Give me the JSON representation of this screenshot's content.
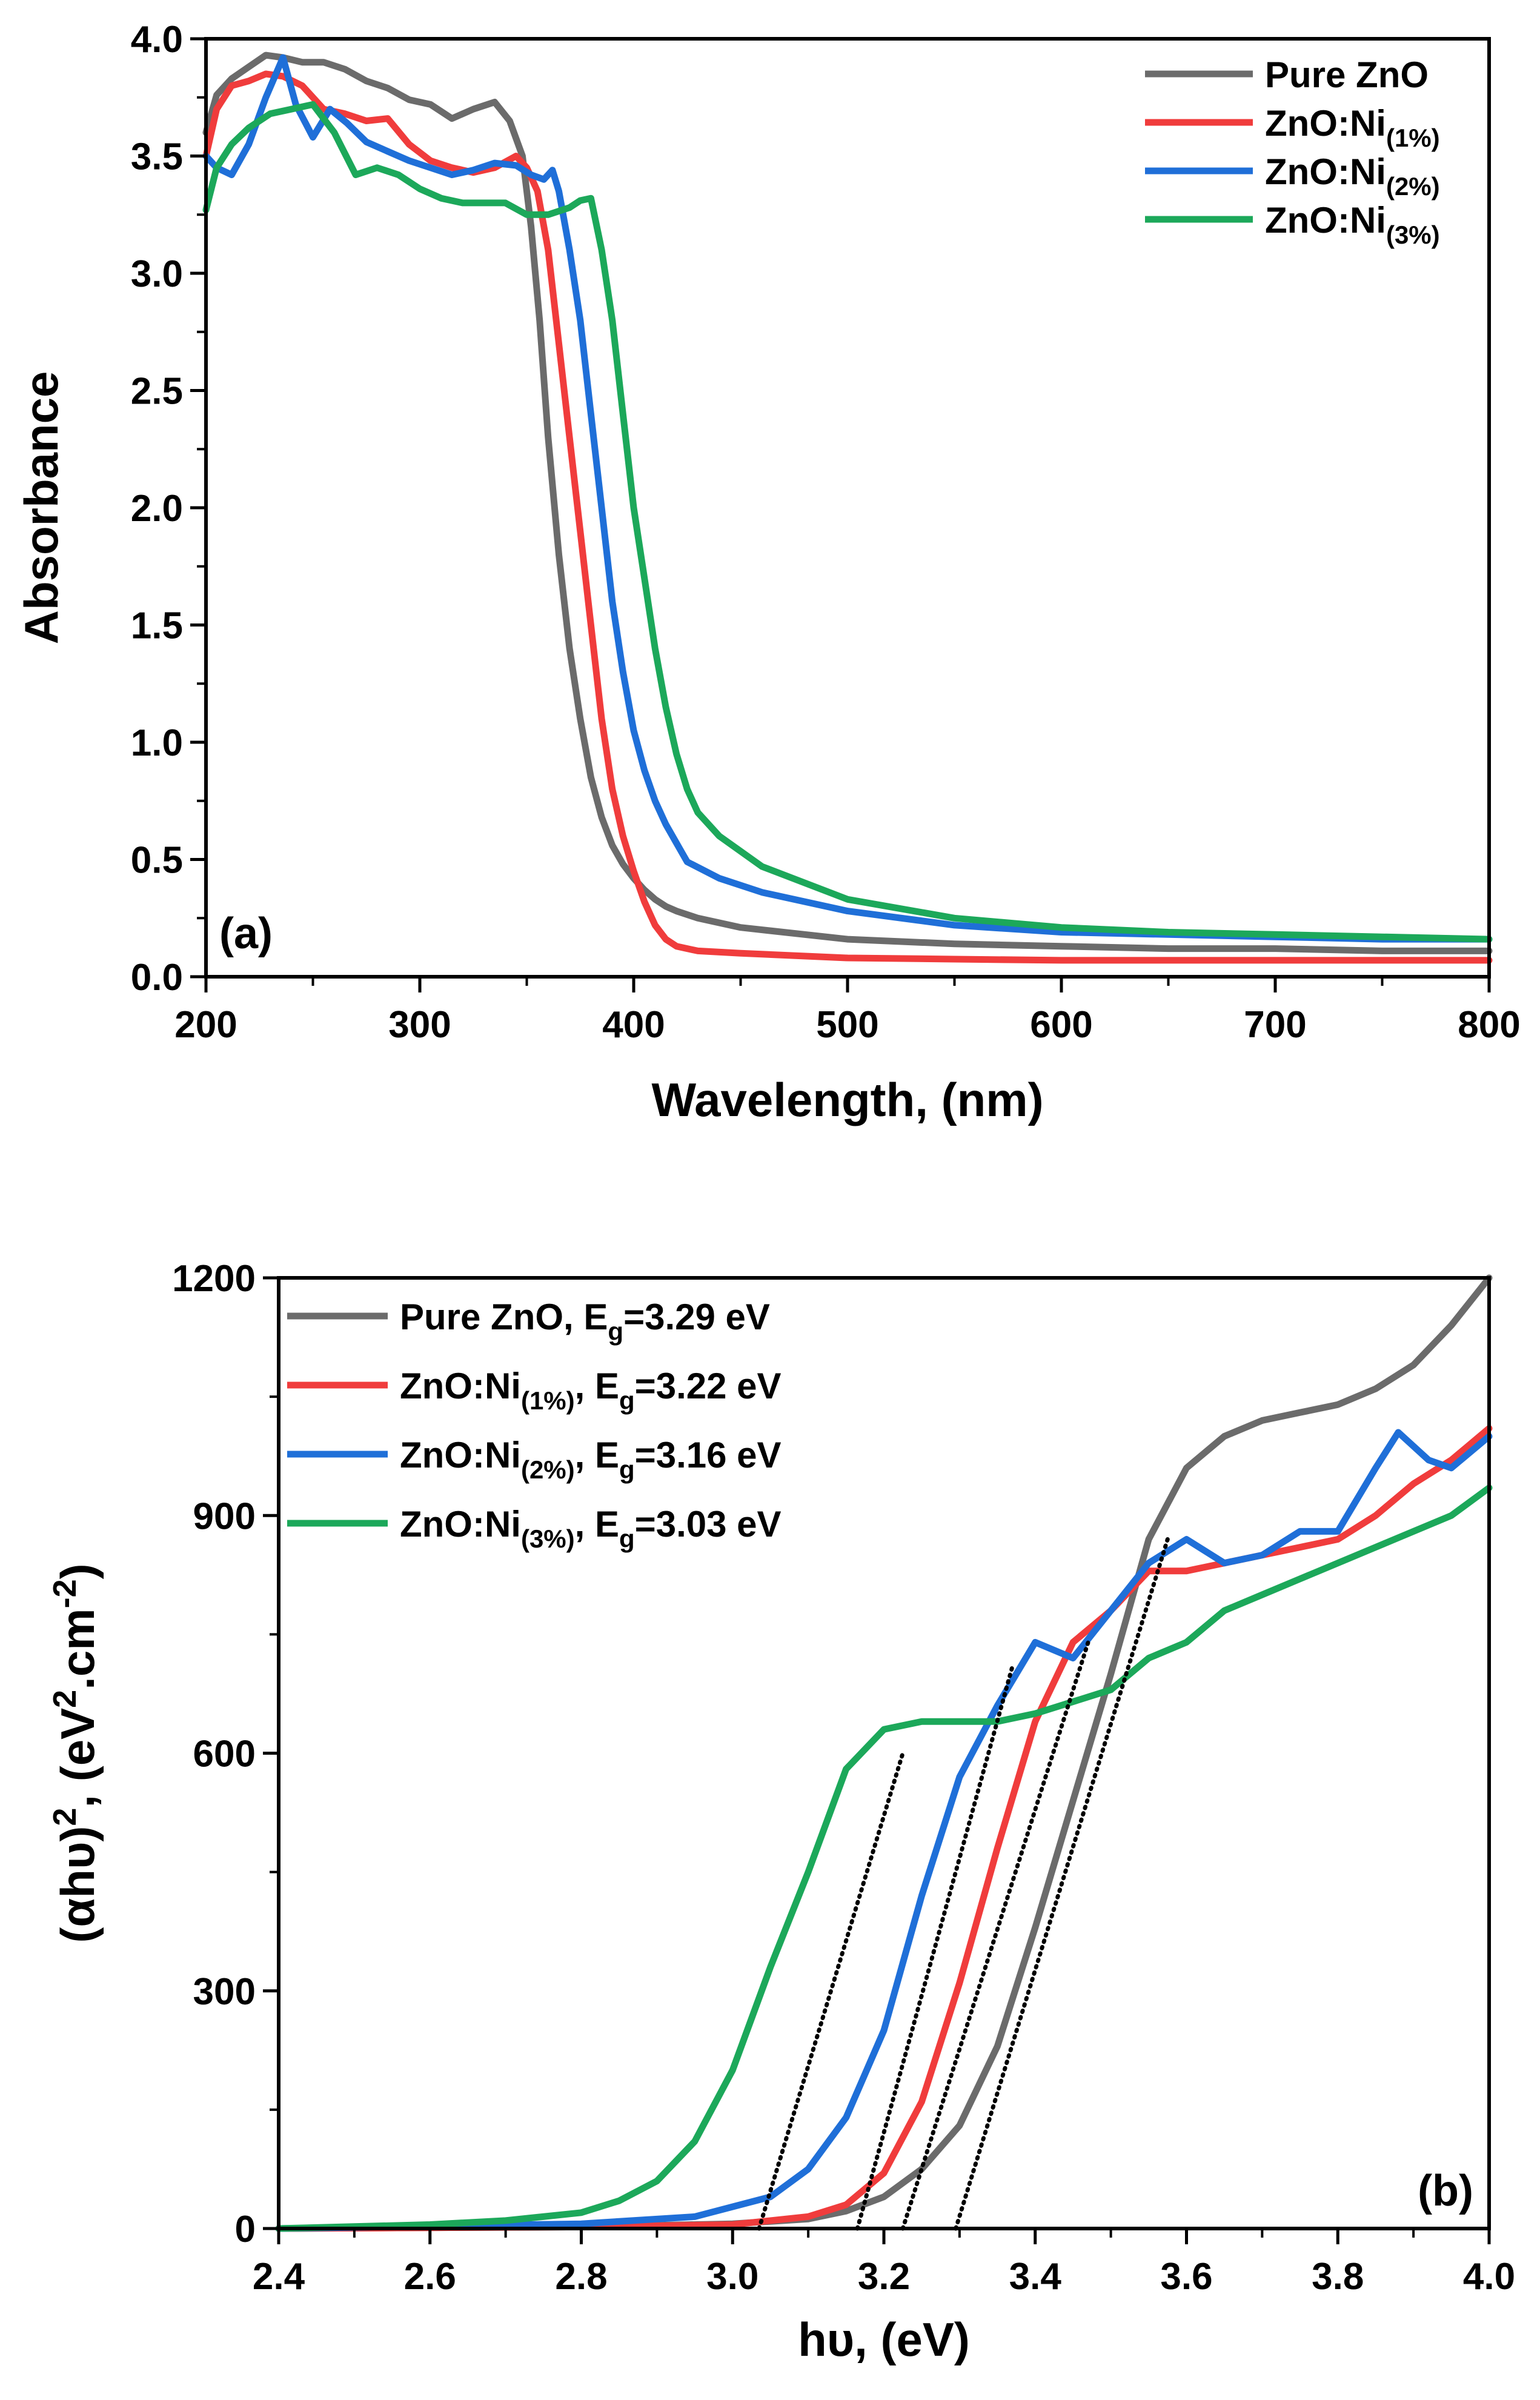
{
  "chart_data": [
    {
      "type": "line",
      "panel_label": "(a)",
      "xlabel": "Wavelength, (nm)",
      "ylabel": "Absorbance",
      "xlim": [
        200,
        800
      ],
      "ylim": [
        0,
        4.0
      ],
      "xticks": [
        200,
        300,
        400,
        500,
        600,
        700,
        800
      ],
      "yticks": [
        0,
        0.5,
        1.0,
        1.5,
        2.0,
        2.5,
        3.0,
        3.5,
        4.0
      ],
      "xtick_labels": [
        "200",
        "300",
        "400",
        "500",
        "600",
        "700",
        "800"
      ],
      "ytick_labels": [
        "0.0",
        "0.5",
        "1.0",
        "1.5",
        "2.0",
        "2.5",
        "3.0",
        "3.5",
        "4.0"
      ],
      "legend_position": "top-right",
      "series": [
        {
          "name": "Pure ZnO",
          "legend_main": "Pure ZnO",
          "legend_sub": "",
          "color": "#6b6b6b",
          "x": [
            200,
            205,
            212,
            220,
            228,
            236,
            245,
            255,
            265,
            275,
            285,
            295,
            305,
            315,
            325,
            335,
            342,
            348,
            352,
            356,
            360,
            365,
            370,
            375,
            380,
            385,
            390,
            395,
            400,
            405,
            410,
            415,
            420,
            430,
            450,
            500,
            550,
            600,
            650,
            700,
            750,
            800
          ],
          "y": [
            3.6,
            3.76,
            3.83,
            3.88,
            3.93,
            3.92,
            3.9,
            3.9,
            3.87,
            3.82,
            3.79,
            3.74,
            3.72,
            3.66,
            3.7,
            3.73,
            3.65,
            3.5,
            3.2,
            2.8,
            2.3,
            1.8,
            1.4,
            1.1,
            0.85,
            0.68,
            0.56,
            0.48,
            0.42,
            0.37,
            0.33,
            0.3,
            0.28,
            0.25,
            0.21,
            0.16,
            0.14,
            0.13,
            0.12,
            0.12,
            0.11,
            0.11
          ]
        },
        {
          "name": "ZnO:Ni(1%)",
          "legend_main": "ZnO:Ni",
          "legend_sub": "(1%)",
          "color": "#f03c3c",
          "x": [
            200,
            205,
            212,
            220,
            228,
            236,
            245,
            255,
            265,
            275,
            285,
            295,
            305,
            315,
            325,
            335,
            345,
            350,
            355,
            360,
            365,
            370,
            375,
            380,
            385,
            390,
            395,
            400,
            405,
            410,
            415,
            420,
            425,
            430,
            450,
            500,
            550,
            600,
            650,
            700,
            750,
            800
          ],
          "y": [
            3.5,
            3.7,
            3.8,
            3.82,
            3.85,
            3.84,
            3.8,
            3.7,
            3.68,
            3.65,
            3.66,
            3.55,
            3.48,
            3.45,
            3.43,
            3.45,
            3.5,
            3.45,
            3.35,
            3.1,
            2.7,
            2.3,
            1.9,
            1.5,
            1.1,
            0.8,
            0.6,
            0.45,
            0.32,
            0.22,
            0.16,
            0.13,
            0.12,
            0.11,
            0.1,
            0.08,
            0.075,
            0.07,
            0.07,
            0.07,
            0.07,
            0.07
          ]
        },
        {
          "name": "ZnO:Ni(2%)",
          "legend_main": "ZnO:Ni",
          "legend_sub": "(2%)",
          "color": "#1f6fd8",
          "x": [
            200,
            205,
            212,
            220,
            228,
            236,
            242,
            250,
            258,
            266,
            275,
            285,
            295,
            305,
            315,
            325,
            335,
            345,
            352,
            358,
            362,
            365,
            370,
            375,
            380,
            385,
            390,
            395,
            400,
            405,
            410,
            415,
            420,
            425,
            440,
            460,
            500,
            550,
            600,
            650,
            700,
            750,
            800
          ],
          "y": [
            3.5,
            3.45,
            3.42,
            3.55,
            3.75,
            3.92,
            3.72,
            3.58,
            3.7,
            3.64,
            3.56,
            3.52,
            3.48,
            3.45,
            3.42,
            3.44,
            3.47,
            3.46,
            3.42,
            3.4,
            3.44,
            3.35,
            3.1,
            2.8,
            2.4,
            2.0,
            1.6,
            1.3,
            1.05,
            0.88,
            0.75,
            0.65,
            0.57,
            0.49,
            0.42,
            0.36,
            0.28,
            0.22,
            0.19,
            0.18,
            0.17,
            0.16,
            0.16
          ]
        },
        {
          "name": "ZnO:Ni(3%)",
          "legend_main": "ZnO:Ni",
          "legend_sub": "(3%)",
          "color": "#1ca85a",
          "x": [
            200,
            205,
            212,
            220,
            230,
            240,
            250,
            260,
            270,
            280,
            290,
            300,
            310,
            320,
            330,
            340,
            350,
            360,
            370,
            375,
            380,
            385,
            390,
            395,
            400,
            405,
            410,
            415,
            420,
            425,
            430,
            440,
            460,
            500,
            550,
            600,
            650,
            700,
            750,
            800
          ],
          "y": [
            3.27,
            3.45,
            3.55,
            3.62,
            3.68,
            3.7,
            3.72,
            3.6,
            3.42,
            3.45,
            3.42,
            3.36,
            3.32,
            3.3,
            3.3,
            3.3,
            3.25,
            3.25,
            3.28,
            3.31,
            3.32,
            3.1,
            2.8,
            2.4,
            2.0,
            1.7,
            1.4,
            1.15,
            0.95,
            0.8,
            0.7,
            0.6,
            0.47,
            0.33,
            0.25,
            0.21,
            0.19,
            0.18,
            0.17,
            0.16
          ]
        }
      ]
    },
    {
      "type": "line",
      "panel_label": "(b)",
      "xlabel": "hυ, (eV)",
      "ylabel_main": "(αhυ)",
      "ylabel_sup": "2",
      "ylabel_mid": ", (eV",
      "ylabel_sup2": "2",
      "ylabel_unit": ".cm",
      "ylabel_sup3": "-2",
      "ylabel_end": ")",
      "xlim": [
        2.4,
        4.0
      ],
      "ylim": [
        0,
        1200
      ],
      "xticks": [
        2.4,
        2.6,
        2.8,
        3.0,
        3.2,
        3.4,
        3.6,
        3.8,
        4.0
      ],
      "yticks": [
        0,
        300,
        600,
        900,
        1200
      ],
      "xtick_labels": [
        "2.4",
        "2.6",
        "2.8",
        "3.0",
        "3.2",
        "3.4",
        "3.6",
        "3.8",
        "4.0"
      ],
      "ytick_labels": [
        "0",
        "300",
        "600",
        "900",
        "1200"
      ],
      "legend_position": "top-left",
      "series": [
        {
          "name": "Pure ZnO, Eg=3.29 eV",
          "legend_main": "Pure ZnO,",
          "legend_sub": "",
          "legend_eg_prefix": "E",
          "legend_eg_sub": "g",
          "legend_eg_value": "=3.29 eV",
          "color": "#6b6b6b",
          "x": [
            2.4,
            2.8,
            3.0,
            3.1,
            3.15,
            3.2,
            3.25,
            3.3,
            3.35,
            3.4,
            3.45,
            3.5,
            3.55,
            3.6,
            3.65,
            3.7,
            3.75,
            3.8,
            3.85,
            3.9,
            3.95,
            4.0
          ],
          "y": [
            0,
            2,
            6,
            12,
            22,
            40,
            75,
            130,
            230,
            380,
            540,
            700,
            870,
            960,
            1000,
            1020,
            1030,
            1040,
            1060,
            1090,
            1140,
            1200
          ]
        },
        {
          "name": "ZnO:Ni(1%), Eg=3.22 eV",
          "legend_main": "ZnO:Ni",
          "legend_sub": "(1%)",
          "legend_eg_prefix": "E",
          "legend_eg_sub": "g",
          "legend_eg_value": "=3.22 eV",
          "color": "#f03c3c",
          "x": [
            2.4,
            2.8,
            3.0,
            3.1,
            3.15,
            3.2,
            3.25,
            3.3,
            3.35,
            3.4,
            3.45,
            3.5,
            3.55,
            3.6,
            3.65,
            3.7,
            3.75,
            3.8,
            3.85,
            3.9,
            3.95,
            4.0
          ],
          "y": [
            0,
            2,
            5,
            15,
            30,
            70,
            160,
            310,
            480,
            640,
            740,
            780,
            830,
            830,
            840,
            850,
            860,
            870,
            900,
            940,
            970,
            1010
          ]
        },
        {
          "name": "ZnO:Ni(2%), Eg=3.16 eV",
          "legend_main": "ZnO:Ni",
          "legend_sub": "(2%)",
          "legend_eg_prefix": "E",
          "legend_eg_sub": "g",
          "legend_eg_value": "=3.16 eV",
          "color": "#1f6fd8",
          "x": [
            2.4,
            2.8,
            2.95,
            3.05,
            3.1,
            3.15,
            3.2,
            3.25,
            3.3,
            3.35,
            3.4,
            3.45,
            3.5,
            3.55,
            3.6,
            3.65,
            3.7,
            3.75,
            3.8,
            3.85,
            3.88,
            3.92,
            3.95,
            4.0
          ],
          "y": [
            0,
            6,
            15,
            40,
            75,
            140,
            250,
            420,
            570,
            660,
            740,
            720,
            780,
            840,
            870,
            840,
            850,
            880,
            880,
            960,
            1005,
            970,
            960,
            1000
          ]
        },
        {
          "name": "ZnO:Ni(3%), Eg=3.03 eV",
          "legend_main": "ZnO:Ni",
          "legend_sub": "(3%)",
          "legend_eg_prefix": "E",
          "legend_eg_sub": "g",
          "legend_eg_value": "=3.03 eV",
          "color": "#1ca85a",
          "x": [
            2.4,
            2.6,
            2.7,
            2.8,
            2.85,
            2.9,
            2.95,
            3.0,
            3.05,
            3.1,
            3.15,
            3.2,
            3.25,
            3.3,
            3.35,
            3.4,
            3.5,
            3.55,
            3.6,
            3.65,
            3.7,
            3.75,
            3.8,
            3.85,
            3.9,
            3.95,
            4.0
          ],
          "y": [
            0,
            5,
            10,
            20,
            35,
            60,
            110,
            200,
            330,
            450,
            580,
            630,
            640,
            640,
            640,
            650,
            680,
            720,
            740,
            780,
            800,
            820,
            840,
            860,
            880,
            900,
            935
          ]
        }
      ],
      "tangent_lines": [
        {
          "name": "tangent-pure",
          "x": [
            3.295,
            3.575
          ],
          "y": [
            0,
            870
          ]
        },
        {
          "name": "tangent-ni1",
          "x": [
            3.225,
            3.47
          ],
          "y": [
            0,
            740
          ]
        },
        {
          "name": "tangent-ni2",
          "x": [
            3.165,
            3.37
          ],
          "y": [
            0,
            710
          ]
        },
        {
          "name": "tangent-ni3",
          "x": [
            3.035,
            3.225
          ],
          "y": [
            0,
            600
          ]
        }
      ]
    }
  ]
}
